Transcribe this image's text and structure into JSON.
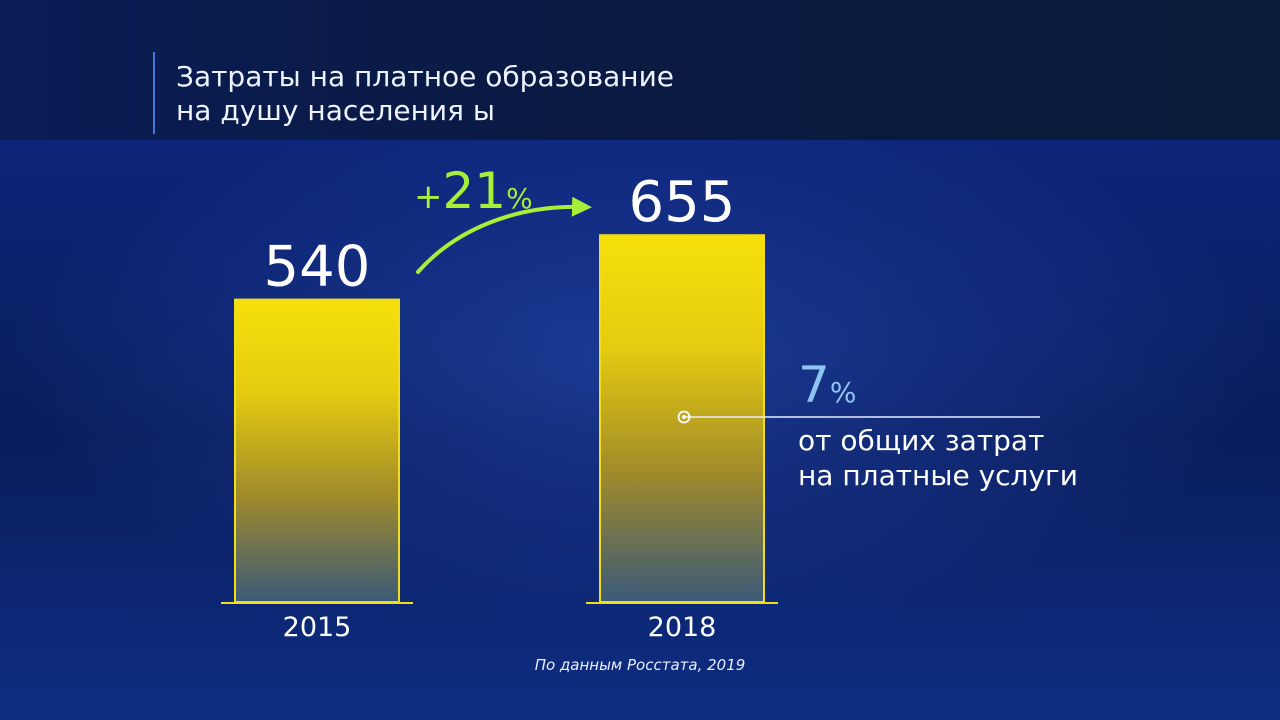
{
  "header": {
    "title_line1": "Затраты на платное образование",
    "title_line2": "на душу населения ы"
  },
  "chart_data": {
    "type": "bar",
    "categories": [
      "2015",
      "2018"
    ],
    "values": [
      540,
      655
    ],
    "value_labels": [
      "540",
      "655"
    ],
    "title": "Затраты на платное образование на душу населения ы",
    "ylim": [
      0,
      700
    ],
    "grid": false,
    "colors": {
      "bar_top": "#f6e00c",
      "bar_bottom": "#3a5a78",
      "arrow": "#a6f03a",
      "accent": "#8ec4f2"
    }
  },
  "annotations": {
    "growth": {
      "sign": "+",
      "number": "21",
      "unit": "%"
    },
    "share": {
      "number": "7",
      "unit": "%",
      "line1": "от общих затрат",
      "line2": "на платные услуги"
    }
  },
  "footer": {
    "source": "По данным Росстата, 2019"
  }
}
